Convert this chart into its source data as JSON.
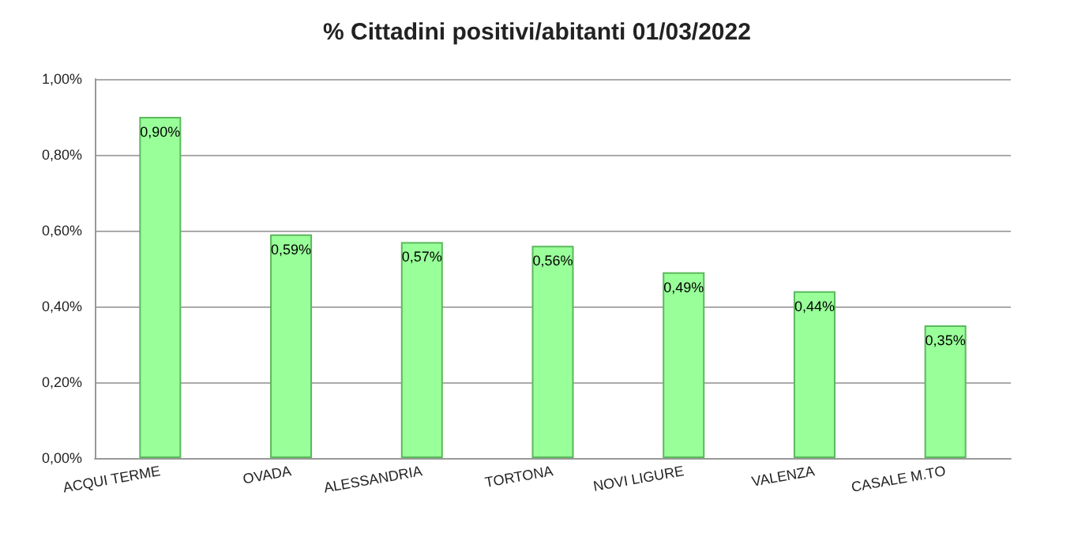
{
  "chart_data": {
    "type": "bar",
    "title": "% Cittadini positivi/abitanti 01/03/2022",
    "categories": [
      "ACQUI TERME",
      "OVADA",
      "ALESSANDRIA",
      "TORTONA",
      "NOVI LIGURE",
      "VALENZA",
      "CASALE M.TO"
    ],
    "values": [
      0.9,
      0.59,
      0.57,
      0.56,
      0.49,
      0.44,
      0.35
    ],
    "value_labels": [
      "0,90%",
      "0,59%",
      "0,57%",
      "0,56%",
      "0,49%",
      "0,44%",
      "0,35%"
    ],
    "color": "#99ff99",
    "ylim": [
      0,
      1
    ],
    "yticks": [
      {
        "value": 0,
        "label": "0,00%"
      },
      {
        "value": 0.2,
        "label": "0,20%"
      },
      {
        "value": 0.4,
        "label": "0,40%"
      },
      {
        "value": 0.6,
        "label": "0,60%"
      },
      {
        "value": 0.8,
        "label": "0,80%"
      },
      {
        "value": 1,
        "label": "1,00%"
      }
    ],
    "grid": true
  }
}
